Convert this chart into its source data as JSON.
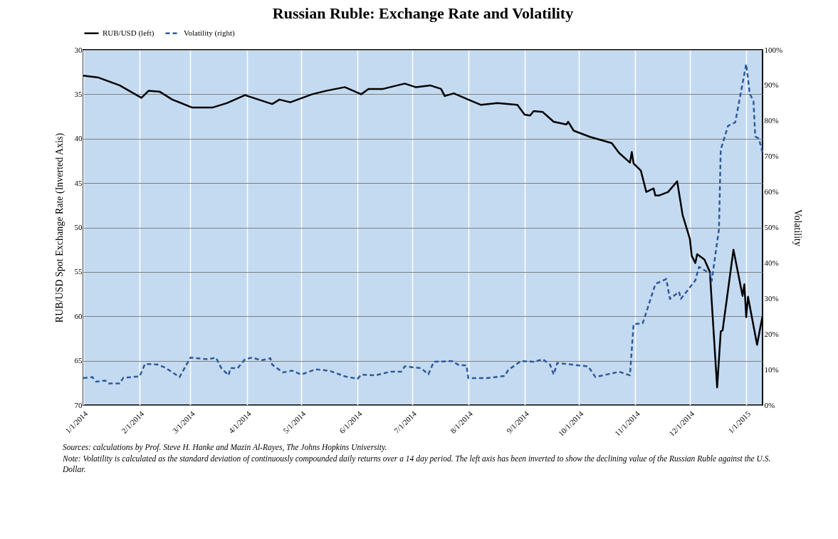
{
  "chart_data": {
    "type": "line",
    "title": "Russian Ruble: Exchange Rate and Volatility",
    "ylabel": "RUB/USD Spot Exchange Rate (Inverted Axis)",
    "y2label": "Volatility",
    "legend": "top",
    "grid": true,
    "xlim": [
      "2014-01-01",
      "2015-01-10"
    ],
    "xticks": [
      {
        "value": "2014-01-01",
        "label": "1/1/2014"
      },
      {
        "value": "2014-02-01",
        "label": "2/1/2014"
      },
      {
        "value": "2014-03-01",
        "label": "3/1/2014"
      },
      {
        "value": "2014-04-01",
        "label": "4/1/2014"
      },
      {
        "value": "2014-05-01",
        "label": "5/1/2014"
      },
      {
        "value": "2014-06-01",
        "label": "6/1/2014"
      },
      {
        "value": "2014-07-01",
        "label": "7/1/2014"
      },
      {
        "value": "2014-08-01",
        "label": "8/1/2014"
      },
      {
        "value": "2014-09-01",
        "label": "9/1/2014"
      },
      {
        "value": "2014-10-01",
        "label": "10/1/2014"
      },
      {
        "value": "2014-11-01",
        "label": "11/1/2014"
      },
      {
        "value": "2014-12-01",
        "label": "12/1/2014"
      },
      {
        "value": "2015-01-01",
        "label": "1/1/2015"
      }
    ],
    "ylim": [
      70,
      30
    ],
    "yticks": [
      30,
      35,
      40,
      45,
      50,
      55,
      60,
      65,
      70
    ],
    "y2lim": [
      0,
      100
    ],
    "y2ticks": [
      {
        "value": 0,
        "label": "0%"
      },
      {
        "value": 10,
        "label": "10%"
      },
      {
        "value": 20,
        "label": "20%"
      },
      {
        "value": 30,
        "label": "30%"
      },
      {
        "value": 40,
        "label": "40%"
      },
      {
        "value": 50,
        "label": "50%"
      },
      {
        "value": 60,
        "label": "60%"
      },
      {
        "value": 70,
        "label": "70%"
      },
      {
        "value": 80,
        "label": "80%"
      },
      {
        "value": 90,
        "label": "90%"
      },
      {
        "value": 100,
        "label": "100%"
      }
    ],
    "series": [
      {
        "name": "RUB/USD (left)",
        "color": "#000000",
        "line_style": "solid",
        "axis": "y",
        "x": [
          "2014-01-01",
          "2014-01-09",
          "2014-01-21",
          "2014-02-02",
          "2014-02-06",
          "2014-02-12",
          "2014-02-19",
          "2014-03-02",
          "2014-03-13",
          "2014-03-21",
          "2014-03-31",
          "2014-04-09",
          "2014-04-15",
          "2014-04-19",
          "2014-04-25",
          "2014-05-07",
          "2014-05-15",
          "2014-05-25",
          "2014-06-03",
          "2014-06-07",
          "2014-06-15",
          "2014-06-27",
          "2014-07-03",
          "2014-07-11",
          "2014-07-17",
          "2014-07-19",
          "2014-07-24",
          "2014-08-01",
          "2014-08-08",
          "2014-08-17",
          "2014-08-28",
          "2014-09-01",
          "2014-09-04",
          "2014-09-06",
          "2014-09-11",
          "2014-09-17",
          "2014-09-24",
          "2014-09-25",
          "2014-09-28",
          "2014-10-07",
          "2014-10-19",
          "2014-10-23",
          "2014-10-29",
          "2014-10-30",
          "2014-10-31",
          "2014-11-04",
          "2014-11-07",
          "2014-11-09",
          "2014-11-11",
          "2014-11-12",
          "2014-11-14",
          "2014-11-19",
          "2014-11-24",
          "2014-11-27",
          "2014-12-01",
          "2014-12-02",
          "2014-12-04",
          "2014-12-05",
          "2014-12-09",
          "2014-12-12",
          "2014-12-16",
          "2014-12-18",
          "2014-12-19",
          "2014-12-25",
          "2014-12-30",
          "2014-12-31",
          "2015-01-01",
          "2015-01-02",
          "2015-01-07",
          "2015-01-09",
          "2015-01-10"
        ],
        "values": [
          32.9,
          33.1,
          34.0,
          35.4,
          34.6,
          34.7,
          35.6,
          36.5,
          36.5,
          36.0,
          35.1,
          35.7,
          36.1,
          35.6,
          35.9,
          35.0,
          34.6,
          34.2,
          35.0,
          34.4,
          34.4,
          33.8,
          34.2,
          34.0,
          34.4,
          35.2,
          34.9,
          35.6,
          36.2,
          36.0,
          36.2,
          37.3,
          37.4,
          36.9,
          37.0,
          38.1,
          38.4,
          38.1,
          39.1,
          39.8,
          40.5,
          41.6,
          42.7,
          41.5,
          42.8,
          43.6,
          46.0,
          45.8,
          45.6,
          46.4,
          46.4,
          46.0,
          44.8,
          48.6,
          51.3,
          53.2,
          54.0,
          53.0,
          53.6,
          55.0,
          68.0,
          61.7,
          61.6,
          52.5,
          57.7,
          56.4,
          60.1,
          57.8,
          63.2,
          61.0,
          60.0
        ]
      },
      {
        "name": "Volatility (right)",
        "color": "#2e5a9c",
        "line_style": "dashed",
        "axis": "y2",
        "x": [
          "2014-01-01",
          "2014-01-06",
          "2014-01-08",
          "2014-01-13",
          "2014-01-15",
          "2014-01-21",
          "2014-01-23",
          "2014-02-01",
          "2014-02-04",
          "2014-02-11",
          "2014-02-15",
          "2014-02-23",
          "2014-03-01",
          "2014-03-11",
          "2014-03-15",
          "2014-03-18",
          "2014-03-22",
          "2014-03-23",
          "2014-03-27",
          "2014-03-31",
          "2014-04-04",
          "2014-04-09",
          "2014-04-14",
          "2014-04-15",
          "2014-04-21",
          "2014-04-26",
          "2014-05-01",
          "2014-05-09",
          "2014-05-17",
          "2014-05-25",
          "2014-06-01",
          "2014-06-03",
          "2014-06-11",
          "2014-06-19",
          "2014-06-25",
          "2014-06-27",
          "2014-07-06",
          "2014-07-10",
          "2014-07-13",
          "2014-07-23",
          "2014-07-27",
          "2014-07-31",
          "2014-08-01",
          "2014-08-11",
          "2014-08-21",
          "2014-08-23",
          "2014-08-30",
          "2014-09-06",
          "2014-09-11",
          "2014-09-15",
          "2014-09-17",
          "2014-09-19",
          "2014-09-27",
          "2014-10-06",
          "2014-10-10",
          "2014-10-23",
          "2014-10-29",
          "2014-10-31",
          "2014-11-05",
          "2014-11-12",
          "2014-11-18",
          "2014-11-20",
          "2014-11-25",
          "2014-11-26",
          "2014-12-04",
          "2014-12-06",
          "2014-12-12",
          "2014-12-13",
          "2014-12-17",
          "2014-12-18",
          "2014-12-22",
          "2014-12-26",
          "2015-01-01",
          "2015-01-03",
          "2015-01-05",
          "2015-01-06",
          "2015-01-08",
          "2015-01-10"
        ],
        "values": [
          7.6,
          7.9,
          6.6,
          6.9,
          6.1,
          6.1,
          7.7,
          8.1,
          11.6,
          11.4,
          10.6,
          7.9,
          13.4,
          12.9,
          13.4,
          10.4,
          8.4,
          10.4,
          10.4,
          12.9,
          13.4,
          12.6,
          13.2,
          11.4,
          9.2,
          9.7,
          8.6,
          10.1,
          9.6,
          8.1,
          7.4,
          8.6,
          8.4,
          9.4,
          9.4,
          10.9,
          10.4,
          8.7,
          12.2,
          12.4,
          11.2,
          11.2,
          7.6,
          7.6,
          8.2,
          9.9,
          12.4,
          12.2,
          12.9,
          11.4,
          8.6,
          11.9,
          11.4,
          10.9,
          7.9,
          9.4,
          8.4,
          22.8,
          23.0,
          34.1,
          35.5,
          29.9,
          31.9,
          29.9,
          35.1,
          38.9,
          37.1,
          34.9,
          49.5,
          71.9,
          78.6,
          79.6,
          96.0,
          87.6,
          85.6,
          75.6,
          75.0,
          71.1
        ]
      }
    ],
    "annotations": [
      "Sources: calculations by Prof. Steve H. Hanke and Mazin Al-Rayes, The Johns Hopkins University.",
      "Note: Volatility is calculated as the standard deviation of continuously compounded daily returns over a 14 day period. The left axis has been inverted to show the declining value of the Russian Ruble against the U.S. Dollar."
    ]
  }
}
